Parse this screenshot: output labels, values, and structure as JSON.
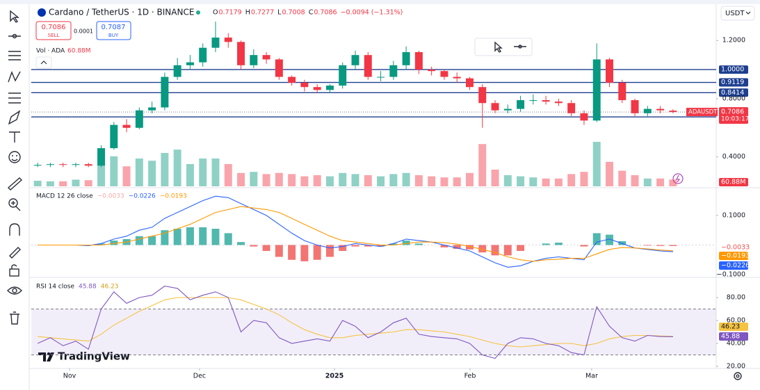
{
  "chart_data": [
    {
      "type": "candlestick",
      "title": "Cardano / TetherUS · 1D · BINANCE",
      "currency": "USDT",
      "ohlc_header": [
        {
          "label": "O",
          "value": 0.7179
        },
        {
          "label": "H",
          "value": 0.7277
        },
        {
          "label": "L",
          "value": 0.7008
        },
        {
          "label": "C",
          "value": 0.7086
        }
      ],
      "change": "−0.0094 (−1.31%)",
      "trade": {
        "sell": 0.7086,
        "sell_label": "SELL",
        "spread": 0.0001,
        "buy": 0.7087,
        "buy_label": "BUY"
      },
      "up_color": "#089981",
      "down_color": "#f23645",
      "open": [
        0.34,
        0.345,
        0.35,
        0.345,
        0.35,
        0.34,
        0.46,
        0.62,
        0.6,
        0.72,
        0.74,
        0.95,
        1.03,
        1.05,
        1.15,
        1.22,
        1.19,
        1.03,
        1.1,
        1.07,
        0.95,
        0.91,
        0.88,
        0.86,
        0.89,
        1.03,
        1.1,
        0.95,
        0.95,
        1.03,
        1.12,
        1.0,
        0.99,
        0.95,
        0.94,
        0.88,
        0.77,
        0.72,
        0.73,
        0.79,
        0.79,
        0.78,
        0.77,
        0.7,
        0.65,
        1.07,
        0.91,
        0.79,
        0.7,
        0.73,
        0.7179
      ],
      "high": [
        0.36,
        0.36,
        0.36,
        0.36,
        0.36,
        0.48,
        0.64,
        0.66,
        0.74,
        0.78,
        0.98,
        1.08,
        1.1,
        1.18,
        1.33,
        1.25,
        1.2,
        1.14,
        1.12,
        1.08,
        0.96,
        0.93,
        0.9,
        0.9,
        1.05,
        1.13,
        1.12,
        0.99,
        1.06,
        1.16,
        1.13,
        1.02,
        1.0,
        0.98,
        0.95,
        0.9,
        0.79,
        0.76,
        0.82,
        0.83,
        0.82,
        0.8,
        0.79,
        0.72,
        1.18,
        1.08,
        0.93,
        0.8,
        0.75,
        0.75,
        0.7277
      ],
      "low": [
        0.33,
        0.33,
        0.33,
        0.33,
        0.33,
        0.33,
        0.45,
        0.57,
        0.59,
        0.7,
        0.72,
        0.93,
        1.0,
        1.02,
        1.12,
        1.15,
        1.0,
        1.01,
        1.04,
        0.93,
        0.89,
        0.85,
        0.84,
        0.84,
        0.87,
        1.0,
        0.93,
        0.92,
        0.93,
        1.0,
        0.97,
        0.96,
        0.93,
        0.91,
        0.86,
        0.6,
        0.7,
        0.7,
        0.71,
        0.76,
        0.76,
        0.75,
        0.68,
        0.62,
        0.64,
        0.88,
        0.77,
        0.68,
        0.68,
        0.7,
        0.7008
      ],
      "close": [
        0.345,
        0.35,
        0.345,
        0.35,
        0.34,
        0.46,
        0.62,
        0.6,
        0.72,
        0.74,
        0.95,
        1.03,
        1.05,
        1.15,
        1.22,
        1.19,
        1.03,
        1.1,
        1.07,
        0.95,
        0.91,
        0.88,
        0.86,
        0.89,
        1.03,
        1.1,
        0.95,
        0.95,
        1.03,
        1.12,
        1.0,
        0.99,
        0.95,
        0.94,
        0.88,
        0.77,
        0.72,
        0.73,
        0.79,
        0.79,
        0.78,
        0.77,
        0.7,
        0.65,
        1.07,
        0.91,
        0.79,
        0.7,
        0.73,
        0.72,
        0.7086
      ],
      "volume": {
        "name": "Vol · ADA",
        "values": [
          50,
          45,
          45,
          60,
          55,
          200,
          270,
          180,
          250,
          230,
          300,
          330,
          200,
          250,
          250,
          200,
          120,
          130,
          110,
          120,
          110,
          90,
          100,
          90,
          120,
          110,
          100,
          90,
          110,
          120,
          100,
          90,
          80,
          80,
          120,
          380,
          150,
          100,
          90,
          80,
          70,
          70,
          110,
          130,
          400,
          220,
          140,
          100,
          70,
          70,
          60.88
        ],
        "last_label": "60.88M",
        "vlim": [
          0,
          1000
        ]
      },
      "ylim": [
        0.198,
        1.44
      ],
      "yticks": [
        {
          "value": 0.4,
          "label": "0.4000"
        },
        {
          "value": 0.8,
          "label": "0.8000"
        },
        {
          "value": 1.2,
          "label": "1.2000"
        }
      ],
      "hlines": [
        {
          "value": 1.0,
          "label": "1.0000"
        },
        {
          "value": 0.9119,
          "label": "0.9119"
        },
        {
          "value": 0.8414,
          "label": "0.8414"
        },
        {
          "value": 0.6749,
          "label": "0.6749"
        }
      ],
      "hline_color": "#1e3f8f",
      "last_price": {
        "symbol": "ADAUSDT",
        "countdown": "10:03:17"
      },
      "xlim": [
        -0.5,
        53.4
      ],
      "xticks": [
        {
          "value": 2.51,
          "label": "Nov"
        },
        {
          "value": 12.74,
          "label": "Dec"
        },
        {
          "value": 23.36,
          "label": "2025"
        },
        {
          "value": 34.03,
          "label": "Feb"
        },
        {
          "value": 43.6,
          "label": "Mar"
        }
      ],
      "watermark": "TradingView"
    },
    {
      "type": "macd",
      "title": "MACD 12 26 close",
      "histogram": {
        "up_color": "#26a69a",
        "down_color": "#ef5350",
        "values": [
          0,
          0,
          0,
          0,
          -0.002,
          0.005,
          0.015,
          0.02,
          0.03,
          0.03,
          0.05,
          0.055,
          0.06,
          0.06,
          0.055,
          0.04,
          0.01,
          -0.005,
          -0.02,
          -0.04,
          -0.05,
          -0.055,
          -0.05,
          -0.04,
          -0.02,
          -0.005,
          -0.005,
          -0.005,
          0.005,
          0.015,
          0.005,
          0,
          -0.008,
          -0.013,
          -0.015,
          -0.025,
          -0.035,
          -0.035,
          -0.02,
          0,
          0.005,
          0.008,
          0,
          -0.005,
          0.04,
          0.035,
          0.013,
          0,
          -0.002,
          -0.003,
          -0.0033
        ],
        "last_label": "−0.0033"
      },
      "macd": {
        "color": "#2962ff",
        "values": [
          0,
          0,
          0,
          0,
          -0.002,
          0.005,
          0.02,
          0.03,
          0.05,
          0.06,
          0.09,
          0.11,
          0.13,
          0.15,
          0.165,
          0.16,
          0.14,
          0.12,
          0.1,
          0.07,
          0.04,
          0.015,
          0,
          -0.01,
          -0.005,
          0.005,
          0,
          -0.005,
          0.005,
          0.02,
          0.015,
          0.01,
          0,
          -0.01,
          -0.02,
          -0.04,
          -0.06,
          -0.075,
          -0.07,
          -0.055,
          -0.045,
          -0.04,
          -0.045,
          -0.05,
          0.01,
          0.02,
          0.005,
          -0.01,
          -0.015,
          -0.02,
          -0.0226
        ],
        "last_label": "−0.0226"
      },
      "signal": {
        "color": "#ff9800",
        "values": [
          0,
          0,
          0,
          0,
          0,
          0,
          0.005,
          0.01,
          0.02,
          0.03,
          0.04,
          0.055,
          0.07,
          0.09,
          0.11,
          0.12,
          0.13,
          0.125,
          0.12,
          0.11,
          0.09,
          0.07,
          0.05,
          0.03,
          0.015,
          0.01,
          0.005,
          0,
          0,
          0.005,
          0.01,
          0.01,
          0.008,
          0.003,
          -0.005,
          -0.015,
          -0.025,
          -0.04,
          -0.05,
          -0.055,
          -0.05,
          -0.048,
          -0.045,
          -0.045,
          -0.03,
          -0.015,
          -0.008,
          -0.01,
          -0.013,
          -0.017,
          -0.0193
        ],
        "last_label": "−0.0193"
      },
      "ylim": [
        -0.107,
        0.189
      ],
      "yticks": [
        {
          "value": -0.1,
          "label": "−0.1000"
        },
        {
          "value": 0.1,
          "label": "0.1000"
        }
      ]
    },
    {
      "type": "rsi",
      "title": "RSI 14 close",
      "rsi": {
        "color": "#7e57c2",
        "values": [
          40,
          45,
          38,
          42,
          35,
          70,
          85,
          75,
          80,
          82,
          90,
          88,
          78,
          82,
          85,
          80,
          50,
          60,
          58,
          45,
          40,
          42,
          44,
          42,
          60,
          55,
          45,
          50,
          58,
          62,
          48,
          46,
          45,
          44,
          40,
          30,
          27,
          40,
          45,
          44,
          40,
          38,
          32,
          30,
          72,
          55,
          45,
          42,
          47,
          46,
          45.88
        ],
        "last_label": "45.88"
      },
      "ma": {
        "color": "#f5c342",
        "values": [
          46,
          45,
          44,
          43,
          42,
          48,
          56,
          62,
          68,
          73,
          78,
          80,
          80,
          80,
          80,
          80,
          78,
          74,
          70,
          65,
          58,
          52,
          48,
          45,
          45,
          47,
          48,
          49,
          50,
          52,
          52,
          51,
          50,
          48,
          46,
          43,
          40,
          38,
          37,
          38,
          39,
          40,
          40,
          38,
          40,
          44,
          46,
          47,
          47,
          46.5,
          46.23
        ],
        "last_label": "46.23"
      },
      "bands": [
        70,
        30
      ],
      "ylim": [
        18.2,
        97
      ],
      "yticks": [
        {
          "value": 20,
          "label": "20.00"
        },
        {
          "value": 40,
          "label": "40.00"
        },
        {
          "value": 60,
          "label": "60.00"
        },
        {
          "value": 80,
          "label": "80.00"
        }
      ]
    }
  ]
}
